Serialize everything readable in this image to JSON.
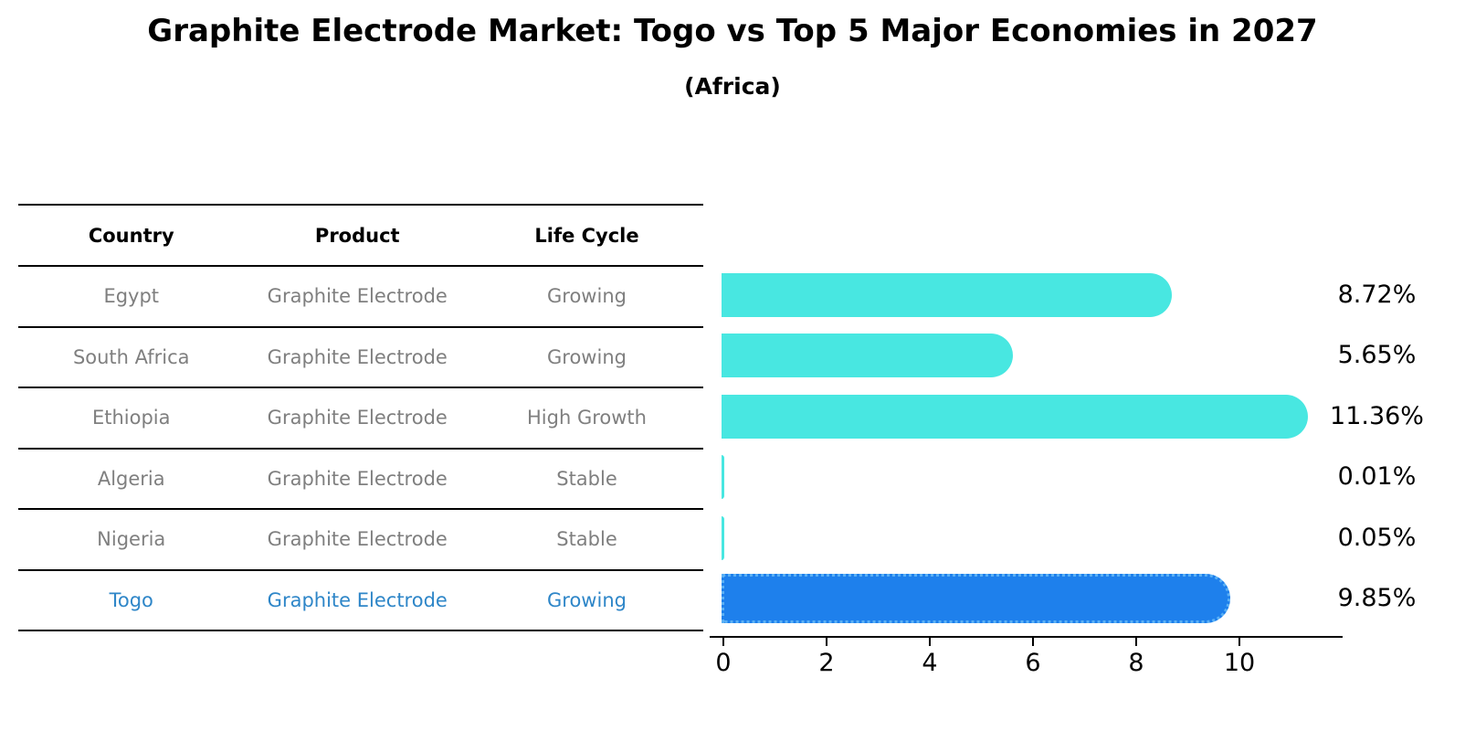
{
  "header": {
    "title": "Graphite Electrode Market: Togo vs Top 5 Major Economies in 2027",
    "subtitle": "(Africa)"
  },
  "table": {
    "headers": {
      "country": "Country",
      "product": "Product",
      "life_cycle": "Life Cycle"
    },
    "rows": [
      {
        "country": "Egypt",
        "product": "Graphite Electrode",
        "life_cycle": "Growing"
      },
      {
        "country": "South Africa",
        "product": "Graphite Electrode",
        "life_cycle": "Growing"
      },
      {
        "country": "Ethiopia",
        "product": "Graphite Electrode",
        "life_cycle": "High Growth"
      },
      {
        "country": "Algeria",
        "product": "Graphite Electrode",
        "life_cycle": "Stable"
      },
      {
        "country": "Nigeria",
        "product": "Graphite Electrode",
        "life_cycle": "Stable"
      },
      {
        "country": "Togo",
        "product": "Graphite Electrode",
        "life_cycle": "Growing"
      }
    ]
  },
  "chart_data": {
    "type": "bar",
    "orientation": "horizontal",
    "title": "Graphite Electrode Market: Togo vs Top 5 Major Economies in 2027",
    "subtitle": "(Africa)",
    "categories": [
      "Egypt",
      "South Africa",
      "Ethiopia",
      "Algeria",
      "Nigeria",
      "Togo"
    ],
    "values": [
      8.72,
      5.65,
      11.36,
      0.01,
      0.05,
      9.85
    ],
    "value_labels": [
      "8.72%",
      "5.65%",
      "11.36%",
      "0.01%",
      "0.05%",
      "9.85%"
    ],
    "xticks": [
      0,
      2,
      4,
      6,
      8,
      10
    ],
    "xlim": [
      0,
      12
    ],
    "xlabel": "",
    "ylabel": "",
    "grid": false,
    "legend": false,
    "bar_color": "#48e7e1",
    "highlight_color": "#1e80ec",
    "highlight_border_color": "#5ab0f5",
    "highlight_index": 5,
    "highlight_text_color": "#2e86c8",
    "text_color_muted": "#7f7f7f"
  }
}
